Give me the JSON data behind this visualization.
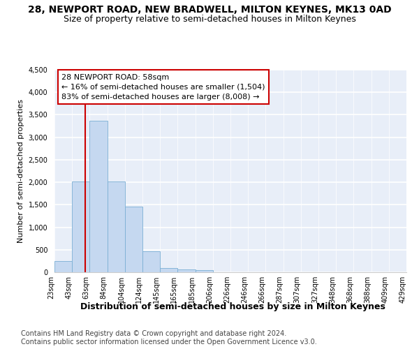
{
  "title": "28, NEWPORT ROAD, NEW BRADWELL, MILTON KEYNES, MK13 0AD",
  "subtitle": "Size of property relative to semi-detached houses in Milton Keynes",
  "xlabel": "Distribution of semi-detached houses by size in Milton Keynes",
  "ylabel": "Number of semi-detached properties",
  "footer_line1": "Contains HM Land Registry data © Crown copyright and database right 2024.",
  "footer_line2": "Contains public sector information licensed under the Open Government Licence v3.0.",
  "bar_values": [
    250,
    2020,
    3370,
    2020,
    1460,
    470,
    100,
    60,
    50,
    5,
    2,
    1,
    0,
    0,
    0,
    0,
    0,
    0,
    0,
    0
  ],
  "bar_labels": [
    "23sqm",
    "43sqm",
    "63sqm",
    "84sqm",
    "104sqm",
    "124sqm",
    "145sqm",
    "165sqm",
    "185sqm",
    "206sqm",
    "226sqm",
    "246sqm",
    "266sqm",
    "287sqm",
    "307sqm",
    "327sqm",
    "348sqm",
    "368sqm",
    "388sqm",
    "409sqm",
    "429sqm"
  ],
  "bar_color": "#c5d8f0",
  "bar_edge_color": "#7bafd4",
  "bar_width": 1.0,
  "ylim": [
    0,
    4500
  ],
  "yticks": [
    0,
    500,
    1000,
    1500,
    2000,
    2500,
    3000,
    3500,
    4000,
    4500
  ],
  "vline_color": "#cc0000",
  "annotation_text": "28 NEWPORT ROAD: 58sqm\n← 16% of semi-detached houses are smaller (1,504)\n83% of semi-detached houses are larger (8,008) →",
  "annotation_box_color": "#ffffff",
  "annotation_box_edge": "#cc0000",
  "bg_color": "#ffffff",
  "plot_bg_color": "#e8eef8",
  "grid_color": "#ffffff",
  "title_fontsize": 10,
  "subtitle_fontsize": 9,
  "annot_fontsize": 8,
  "xlabel_fontsize": 9,
  "ylabel_fontsize": 8,
  "tick_fontsize": 7,
  "footer_fontsize": 7
}
